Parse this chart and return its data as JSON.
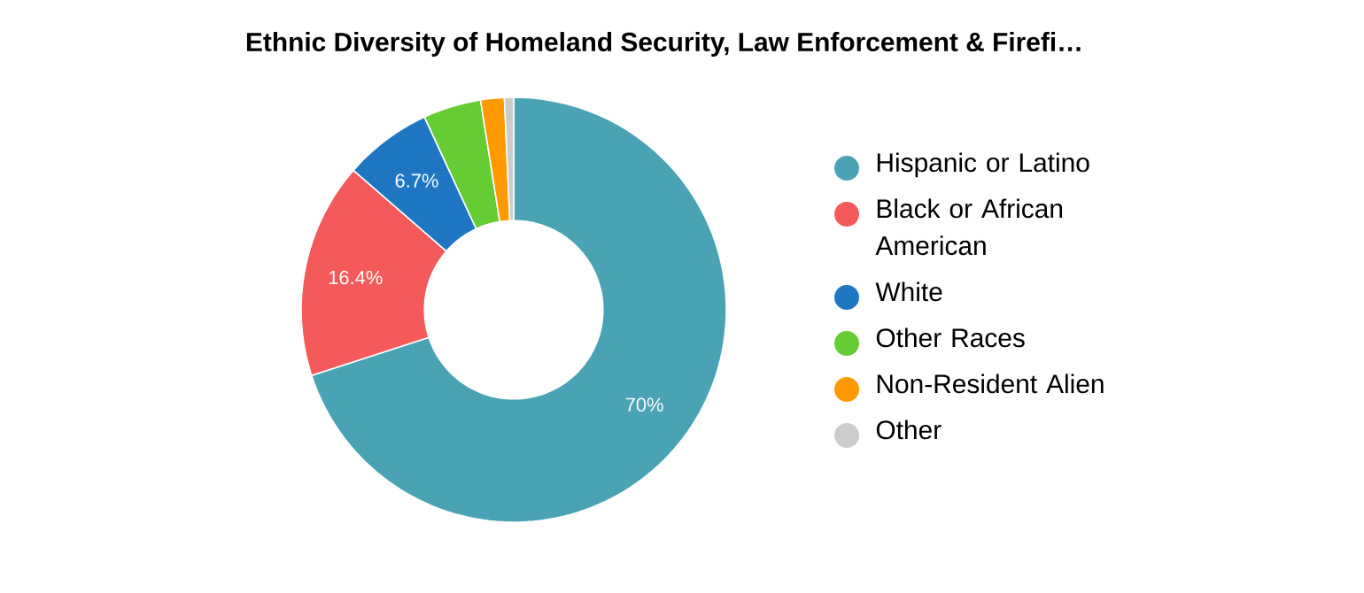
{
  "chart_data": {
    "type": "donut",
    "title": "Ethnic Diversity of Homeland Security, Law Enforcement & Firefi…",
    "categories": [
      "Hispanic or Latino",
      "Black or African American",
      "White",
      "Other Races",
      "Non-Resident Alien",
      "Other"
    ],
    "values": [
      70,
      16.4,
      6.7,
      4.4,
      1.8,
      0.7
    ],
    "value_labels": [
      "70%",
      "16.4%",
      "6.7%",
      null,
      null,
      null
    ],
    "colors": [
      "#4aa3b5",
      "#f55a5a",
      "#1f77c4",
      "#66cc33",
      "#ff9900",
      "#cccccc"
    ],
    "legend": "right"
  }
}
